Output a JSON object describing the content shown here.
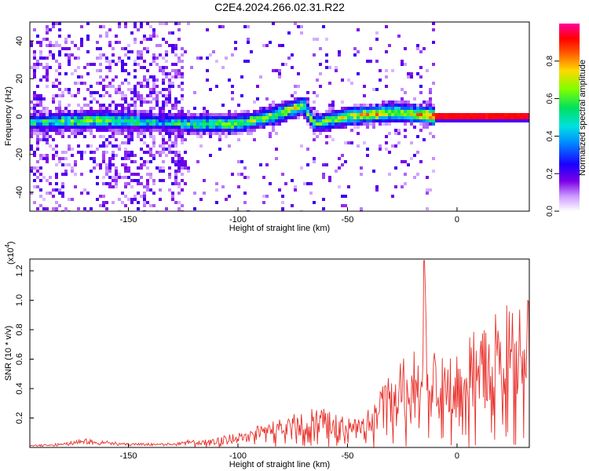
{
  "title": "C2E4.2024.266.02.31.R22",
  "colors": {
    "snr_line": "#e8302a",
    "axis": "#000000"
  },
  "chart_data": [
    {
      "type": "heatmap",
      "xlabel": "Height of straight line (km)",
      "ylabel": "Frequency (Hz)",
      "xlim": [
        -195,
        33
      ],
      "ylim": [
        -50,
        50
      ],
      "x_ticks": [
        -150,
        -100,
        -50,
        0
      ],
      "y_ticks": [
        -40,
        -20,
        0,
        20,
        40
      ],
      "x_tick_labels": [
        "-150",
        "-100",
        "-50",
        "0"
      ],
      "y_tick_labels": [
        "-40",
        "-20",
        "0",
        "20",
        "40"
      ],
      "colorbar": {
        "label": "Normalized spectral amplitude",
        "range": [
          0,
          1
        ],
        "ticks": [
          0.0,
          0.2,
          0.4,
          0.6,
          0.8
        ],
        "tick_labels": [
          "0.0",
          "0.2",
          "0.4",
          "0.6",
          "0.8"
        ],
        "colormap": "rainbow (white-violet-blue-cyan-green-yellow-red-magenta)"
      },
      "ridge": {
        "description": "strong signal near 0 Hz rising slightly then collapsing to a tight line at 0 Hz for heights above about -12 km",
        "x": [
          -195,
          -160,
          -135,
          -120,
          -100,
          -85,
          -70,
          -65,
          -50,
          -30,
          -15,
          -10,
          0,
          33
        ],
        "freq_hz": [
          -3,
          -2,
          -3,
          -4,
          -4,
          0,
          6,
          -4,
          0,
          2,
          1,
          0,
          0,
          0
        ],
        "amplitude": [
          0.35,
          0.45,
          0.3,
          0.4,
          0.45,
          0.5,
          0.55,
          0.4,
          0.55,
          0.6,
          0.6,
          0.9,
          0.95,
          0.95
        ]
      }
    },
    {
      "type": "line",
      "xlabel": "Height of straight line (km)",
      "ylabel": "SNR (10 * v/v)",
      "y_multiplier_label": "(x10",
      "y_multiplier_exp": "4",
      "y_multiplier_suffix": ")",
      "xlim": [
        -195,
        33
      ],
      "ylim": [
        0,
        1.28
      ],
      "x_ticks": [
        -150,
        -100,
        -50,
        0
      ],
      "y_ticks": [
        0.2,
        0.4,
        0.6,
        0.8,
        1.0,
        1.2
      ],
      "x_tick_labels": [
        "-150",
        "-100",
        "-50",
        "0"
      ],
      "y_tick_labels": [
        "0.2",
        "0.4",
        "0.6",
        "0.8",
        "1.0",
        "1.2"
      ],
      "series": [
        {
          "x": [
            -195,
            -180,
            -170,
            -160,
            -150,
            -140,
            -130,
            -120,
            -110,
            -100,
            -90,
            -80,
            -70,
            -60,
            -50,
            -45,
            -40,
            -35,
            -30,
            -25,
            -20,
            -16,
            -15,
            -13,
            -10,
            -5,
            0,
            5,
            10,
            15,
            20,
            25,
            30,
            33
          ],
          "y": [
            0.01,
            0.02,
            0.04,
            0.03,
            0.02,
            0.02,
            0.02,
            0.04,
            0.07,
            0.1,
            0.15,
            0.2,
            0.25,
            0.3,
            0.2,
            0.2,
            0.28,
            0.4,
            0.5,
            0.6,
            0.7,
            0.5,
            1.25,
            0.7,
            0.65,
            0.6,
            0.75,
            0.8,
            0.85,
            0.9,
            0.95,
            1.0,
            1.0,
            1.02
          ],
          "spread_max": [
            0.01,
            0.04,
            0.06,
            0.05,
            0.03,
            0.03,
            0.03,
            0.08,
            0.15,
            0.22,
            0.3,
            0.38,
            0.42,
            0.44,
            0.35,
            0.35,
            0.48,
            0.65,
            0.8,
            0.9,
            0.95,
            1.0,
            1.28,
            1.0,
            0.9,
            0.85,
            0.95,
            0.95,
            0.95,
            0.98,
            1.0,
            1.05,
            1.06,
            1.05
          ]
        }
      ]
    }
  ]
}
